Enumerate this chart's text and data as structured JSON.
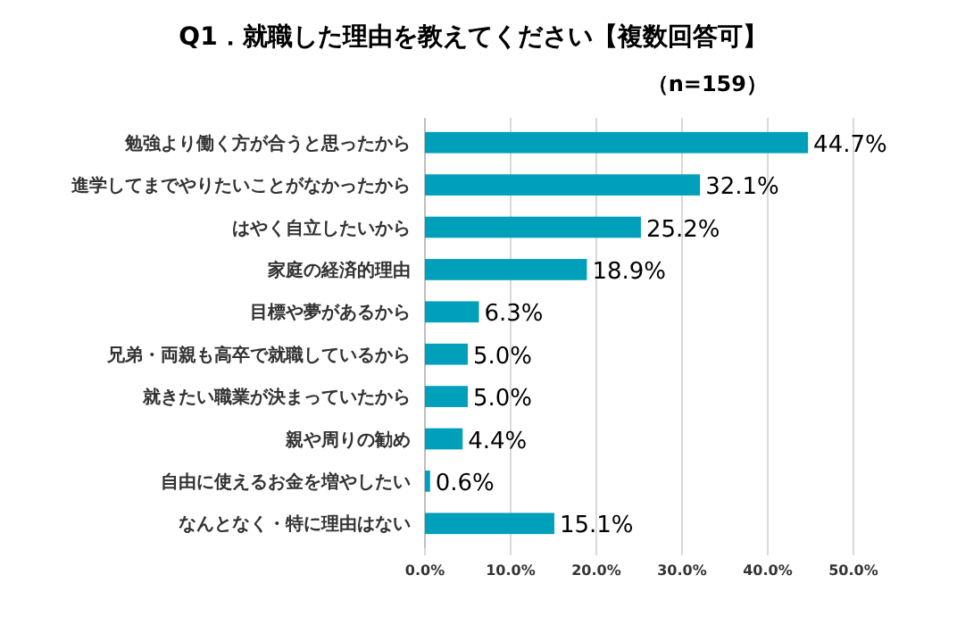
{
  "chart_data": {
    "type": "bar",
    "orientation": "horizontal",
    "title": "Q1．就職した理由を教えてください【複数回答可】",
    "subtitle": "（n=159）",
    "categories": [
      "勉強より働く方が合うと思ったから",
      "進学してまでやりたいことがなかったから",
      "はやく自立したいから",
      "家庭の経済的理由",
      "目標や夢があるから",
      "兄弟・両親も高卒で就職しているから",
      "就きたい職業が決まっていたから",
      "親や周りの勧め",
      "自由に使えるお金を増やしたい",
      "なんとなく・特に理由はない"
    ],
    "values": [
      44.7,
      32.1,
      25.2,
      18.9,
      6.3,
      5.0,
      5.0,
      4.4,
      0.6,
      15.1
    ],
    "value_labels": [
      "44.7%",
      "32.1%",
      "25.2%",
      "18.9%",
      "6.3%",
      "5.0%",
      "5.0%",
      "4.4%",
      "0.6%",
      "15.1%"
    ],
    "color": "#00a0bb",
    "xlim": [
      0,
      50
    ],
    "xticks": [
      {
        "value": 0,
        "label": "0.0%"
      },
      {
        "value": 10,
        "label": "10.0%"
      },
      {
        "value": 20,
        "label": "20.0%"
      },
      {
        "value": 30,
        "label": "30.0%"
      },
      {
        "value": 40,
        "label": "40.0%"
      },
      {
        "value": 50,
        "label": "50.0%"
      }
    ],
    "grid": "x"
  }
}
